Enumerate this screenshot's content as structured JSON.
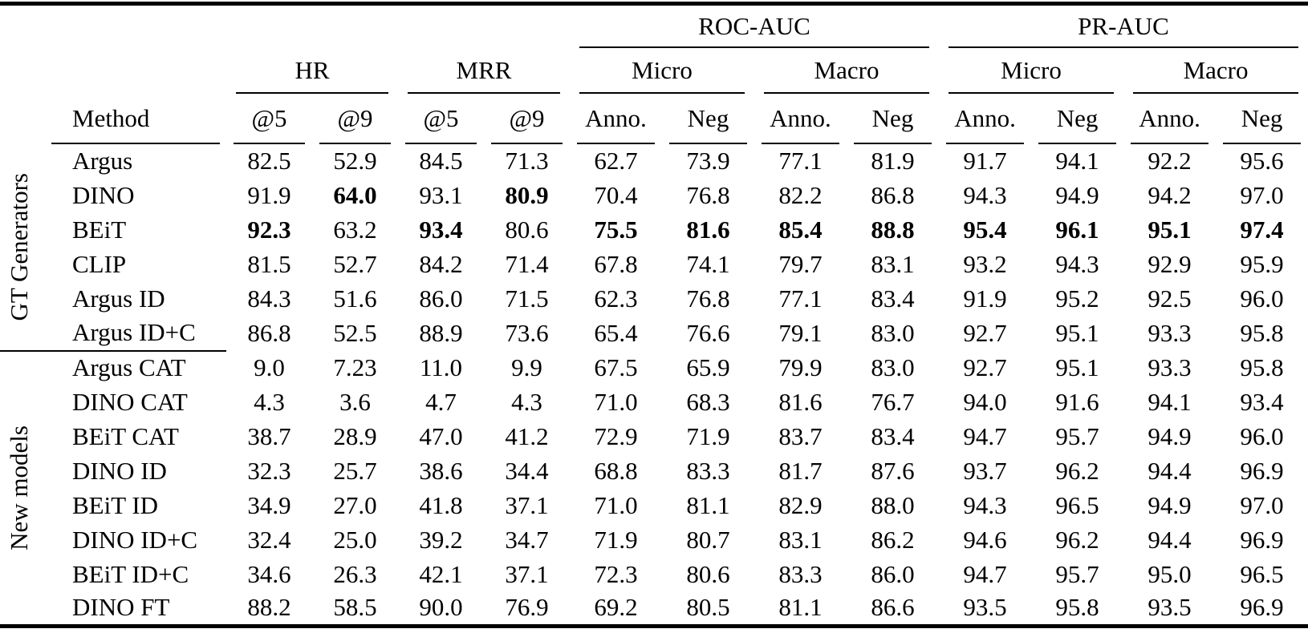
{
  "table": {
    "top_headers": [
      "ROC-AUC",
      "PR-AUC"
    ],
    "metric_headers": [
      "HR",
      "MRR",
      "Micro",
      "Macro",
      "Micro",
      "Macro"
    ],
    "method_header": "Method",
    "sub_headers": [
      "@5",
      "@9",
      "@5",
      "@9",
      "Anno.",
      "Neg",
      "Anno.",
      "Neg",
      "Anno.",
      "Neg",
      "Anno.",
      "Neg"
    ],
    "groups": [
      {
        "label": "GT Generators",
        "separator_above": false,
        "rows": [
          {
            "method": "Argus",
            "values": [
              "82.5",
              "52.9",
              "84.5",
              "71.3",
              "62.7",
              "73.9",
              "77.1",
              "81.9",
              "91.7",
              "94.1",
              "92.2",
              "95.6"
            ],
            "bold": []
          },
          {
            "method": "DINO",
            "values": [
              "91.9",
              "64.0",
              "93.1",
              "80.9",
              "70.4",
              "76.8",
              "82.2",
              "86.8",
              "94.3",
              "94.9",
              "94.2",
              "97.0"
            ],
            "bold": [
              1,
              3
            ]
          },
          {
            "method": "BEiT",
            "values": [
              "92.3",
              "63.2",
              "93.4",
              "80.6",
              "75.5",
              "81.6",
              "85.4",
              "88.8",
              "95.4",
              "96.1",
              "95.1",
              "97.4"
            ],
            "bold": [
              0,
              2,
              4,
              5,
              6,
              7,
              8,
              9,
              10,
              11
            ]
          },
          {
            "method": "CLIP",
            "values": [
              "81.5",
              "52.7",
              "84.2",
              "71.4",
              "67.8",
              "74.1",
              "79.7",
              "83.1",
              "93.2",
              "94.3",
              "92.9",
              "95.9"
            ],
            "bold": []
          },
          {
            "method": "Argus ID",
            "values": [
              "84.3",
              "51.6",
              "86.0",
              "71.5",
              "62.3",
              "76.8",
              "77.1",
              "83.4",
              "91.9",
              "95.2",
              "92.5",
              "96.0"
            ],
            "bold": []
          },
          {
            "method": "Argus ID+C",
            "values": [
              "86.8",
              "52.5",
              "88.9",
              "73.6",
              "65.4",
              "76.6",
              "79.1",
              "83.0",
              "92.7",
              "95.1",
              "93.3",
              "95.8"
            ],
            "bold": []
          }
        ]
      },
      {
        "label": "New models",
        "separator_above": true,
        "rows": [
          {
            "method": "Argus CAT",
            "values": [
              "9.0",
              "7.23",
              "11.0",
              "9.9",
              "67.5",
              "65.9",
              "79.9",
              "83.0",
              "92.7",
              "95.1",
              "93.3",
              "95.8"
            ],
            "bold": []
          },
          {
            "method": "DINO CAT",
            "values": [
              "4.3",
              "3.6",
              "4.7",
              "4.3",
              "71.0",
              "68.3",
              "81.6",
              "76.7",
              "94.0",
              "91.6",
              "94.1",
              "93.4"
            ],
            "bold": []
          },
          {
            "method": "BEiT CAT",
            "values": [
              "38.7",
              "28.9",
              "47.0",
              "41.2",
              "72.9",
              "71.9",
              "83.7",
              "83.4",
              "94.7",
              "95.7",
              "94.9",
              "96.0"
            ],
            "bold": []
          },
          {
            "method": "DINO ID",
            "values": [
              "32.3",
              "25.7",
              "38.6",
              "34.4",
              "68.8",
              "83.3",
              "81.7",
              "87.6",
              "93.7",
              "96.2",
              "94.4",
              "96.9"
            ],
            "bold": []
          },
          {
            "method": "BEiT ID",
            "values": [
              "34.9",
              "27.0",
              "41.8",
              "37.1",
              "71.0",
              "81.1",
              "82.9",
              "88.0",
              "94.3",
              "96.5",
              "94.9",
              "97.0"
            ],
            "bold": []
          },
          {
            "method": "DINO ID+C",
            "values": [
              "32.4",
              "25.0",
              "39.2",
              "34.7",
              "71.9",
              "80.7",
              "83.1",
              "86.2",
              "94.6",
              "96.2",
              "94.4",
              "96.9"
            ],
            "bold": []
          },
          {
            "method": "BEiT ID+C",
            "values": [
              "34.6",
              "26.3",
              "42.1",
              "37.1",
              "72.3",
              "80.6",
              "83.3",
              "86.0",
              "94.7",
              "95.7",
              "95.0",
              "96.5"
            ],
            "bold": []
          },
          {
            "method": "DINO FT",
            "values": [
              "88.2",
              "58.5",
              "90.0",
              "76.9",
              "69.2",
              "80.5",
              "81.1",
              "86.6",
              "93.5",
              "95.8",
              "93.5",
              "96.9"
            ],
            "bold": []
          }
        ]
      }
    ]
  }
}
